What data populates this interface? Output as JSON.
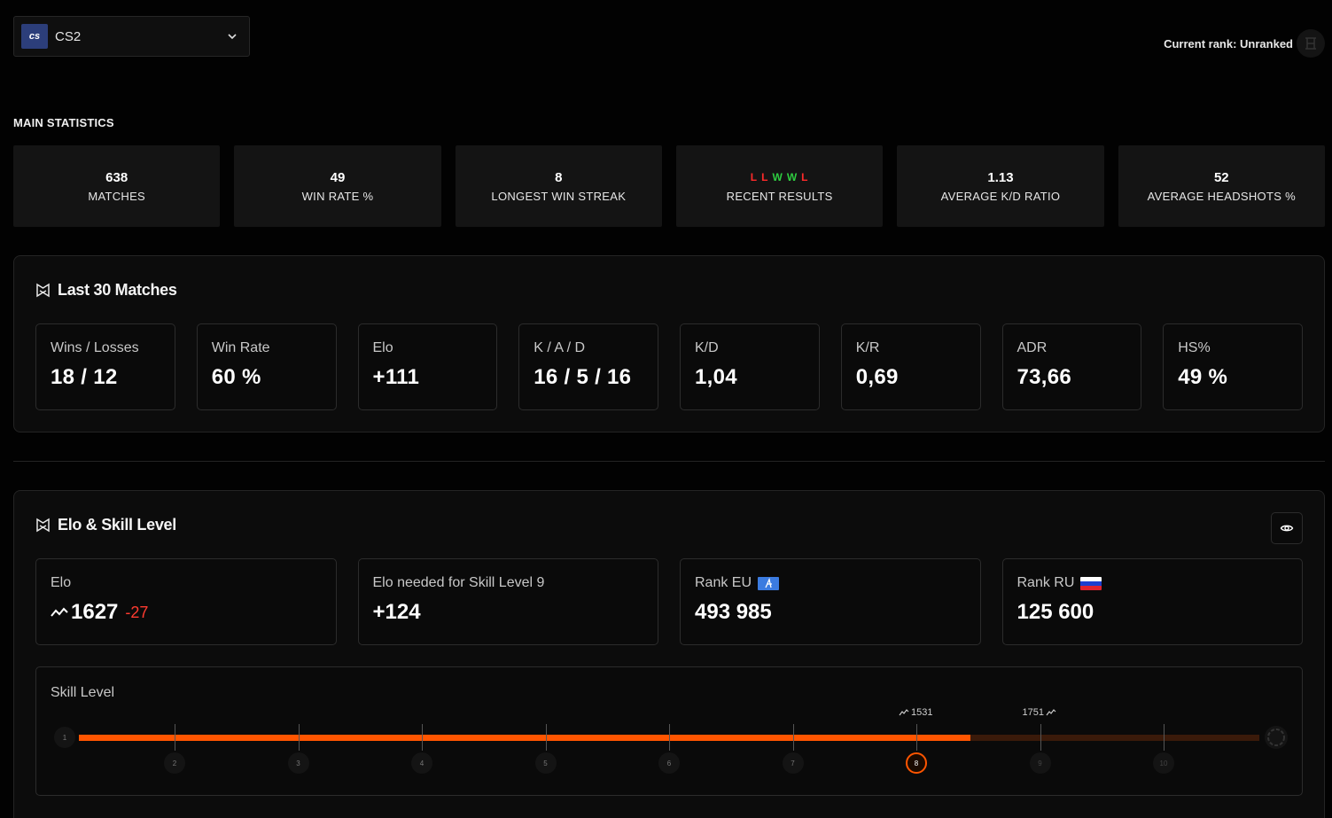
{
  "game_selector": {
    "logo_text": "cs",
    "name": "CS2"
  },
  "header": {
    "current_rank": "Current rank: Unranked"
  },
  "main_statistics": {
    "title": "MAIN STATISTICS",
    "cards": [
      {
        "value": "638",
        "label": "MATCHES"
      },
      {
        "value": "49",
        "label": "WIN RATE %"
      },
      {
        "value": "8",
        "label": "LONGEST WIN STREAK"
      },
      {
        "value": "",
        "label": "RECENT RESULTS"
      },
      {
        "value": "1.13",
        "label": "AVERAGE K/D RATIO"
      },
      {
        "value": "52",
        "label": "AVERAGE HEADSHOTS %"
      }
    ],
    "recent_results": [
      "L",
      "L",
      "W",
      "W",
      "L"
    ],
    "colors": {
      "win": "#2ecc40",
      "loss": "#ff2a2a"
    }
  },
  "last_matches": {
    "title": "Last 30 Matches",
    "cards": [
      {
        "label": "Wins / Losses",
        "value": "18 / 12"
      },
      {
        "label": "Win Rate",
        "value": "60 %"
      },
      {
        "label": "Elo",
        "value": "+111"
      },
      {
        "label": "K / A / D",
        "value": "16 / 5 / 16"
      },
      {
        "label": "K/D",
        "value": "1,04"
      },
      {
        "label": "K/R",
        "value": "0,69"
      },
      {
        "label": "ADR",
        "value": "73,66"
      },
      {
        "label": "HS%",
        "value": "49 %"
      }
    ]
  },
  "elo_skill": {
    "title": "Elo & Skill Level",
    "elo": {
      "label": "Elo",
      "value": "1627",
      "delta": "-27"
    },
    "elo_needed": {
      "label": "Elo needed for Skill Level 9",
      "value": "+124"
    },
    "rank_eu": {
      "label": "Rank EU",
      "value": "493 985"
    },
    "rank_ru": {
      "label": "Rank RU",
      "value": "125 600"
    },
    "skill_level": {
      "title": "Skill Level",
      "levels": [
        "1",
        "2",
        "3",
        "4",
        "5",
        "6",
        "7",
        "8",
        "9",
        "10"
      ],
      "current_level": 8,
      "progress_fraction": 0.755,
      "marker_current": "1531",
      "marker_next": "1751",
      "accent": "#ff5500"
    }
  }
}
